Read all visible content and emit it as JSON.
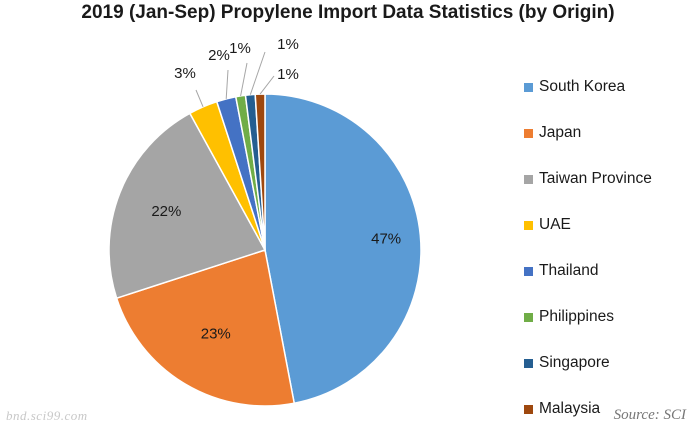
{
  "chart_data": {
    "type": "pie",
    "title": "2019 (Jan-Sep) Propylene Import Data Statistics (by Origin)",
    "slices": [
      {
        "label": "South Korea",
        "value": 47,
        "display": "47%",
        "color": "#5b9bd5"
      },
      {
        "label": "Japan",
        "value": 23,
        "display": "23%",
        "color": "#ed7d31"
      },
      {
        "label": "Taiwan Province",
        "value": 22,
        "display": "22%",
        "color": "#a5a5a5"
      },
      {
        "label": "UAE",
        "value": 3,
        "display": "3%",
        "color": "#ffc000"
      },
      {
        "label": "Thailand",
        "value": 2,
        "display": "2%",
        "color": "#4472c4"
      },
      {
        "label": "Philippines",
        "value": 1,
        "display": "1%",
        "color": "#70ad47"
      },
      {
        "label": "Singapore",
        "value": 1,
        "display": "1%",
        "color": "#255e91"
      },
      {
        "label": "Malaysia",
        "value": 1,
        "display": "1%",
        "color": "#9e480e"
      }
    ],
    "legend_position": "right"
  },
  "source": "Source: SCI",
  "watermark": "bnd.sci99.com"
}
